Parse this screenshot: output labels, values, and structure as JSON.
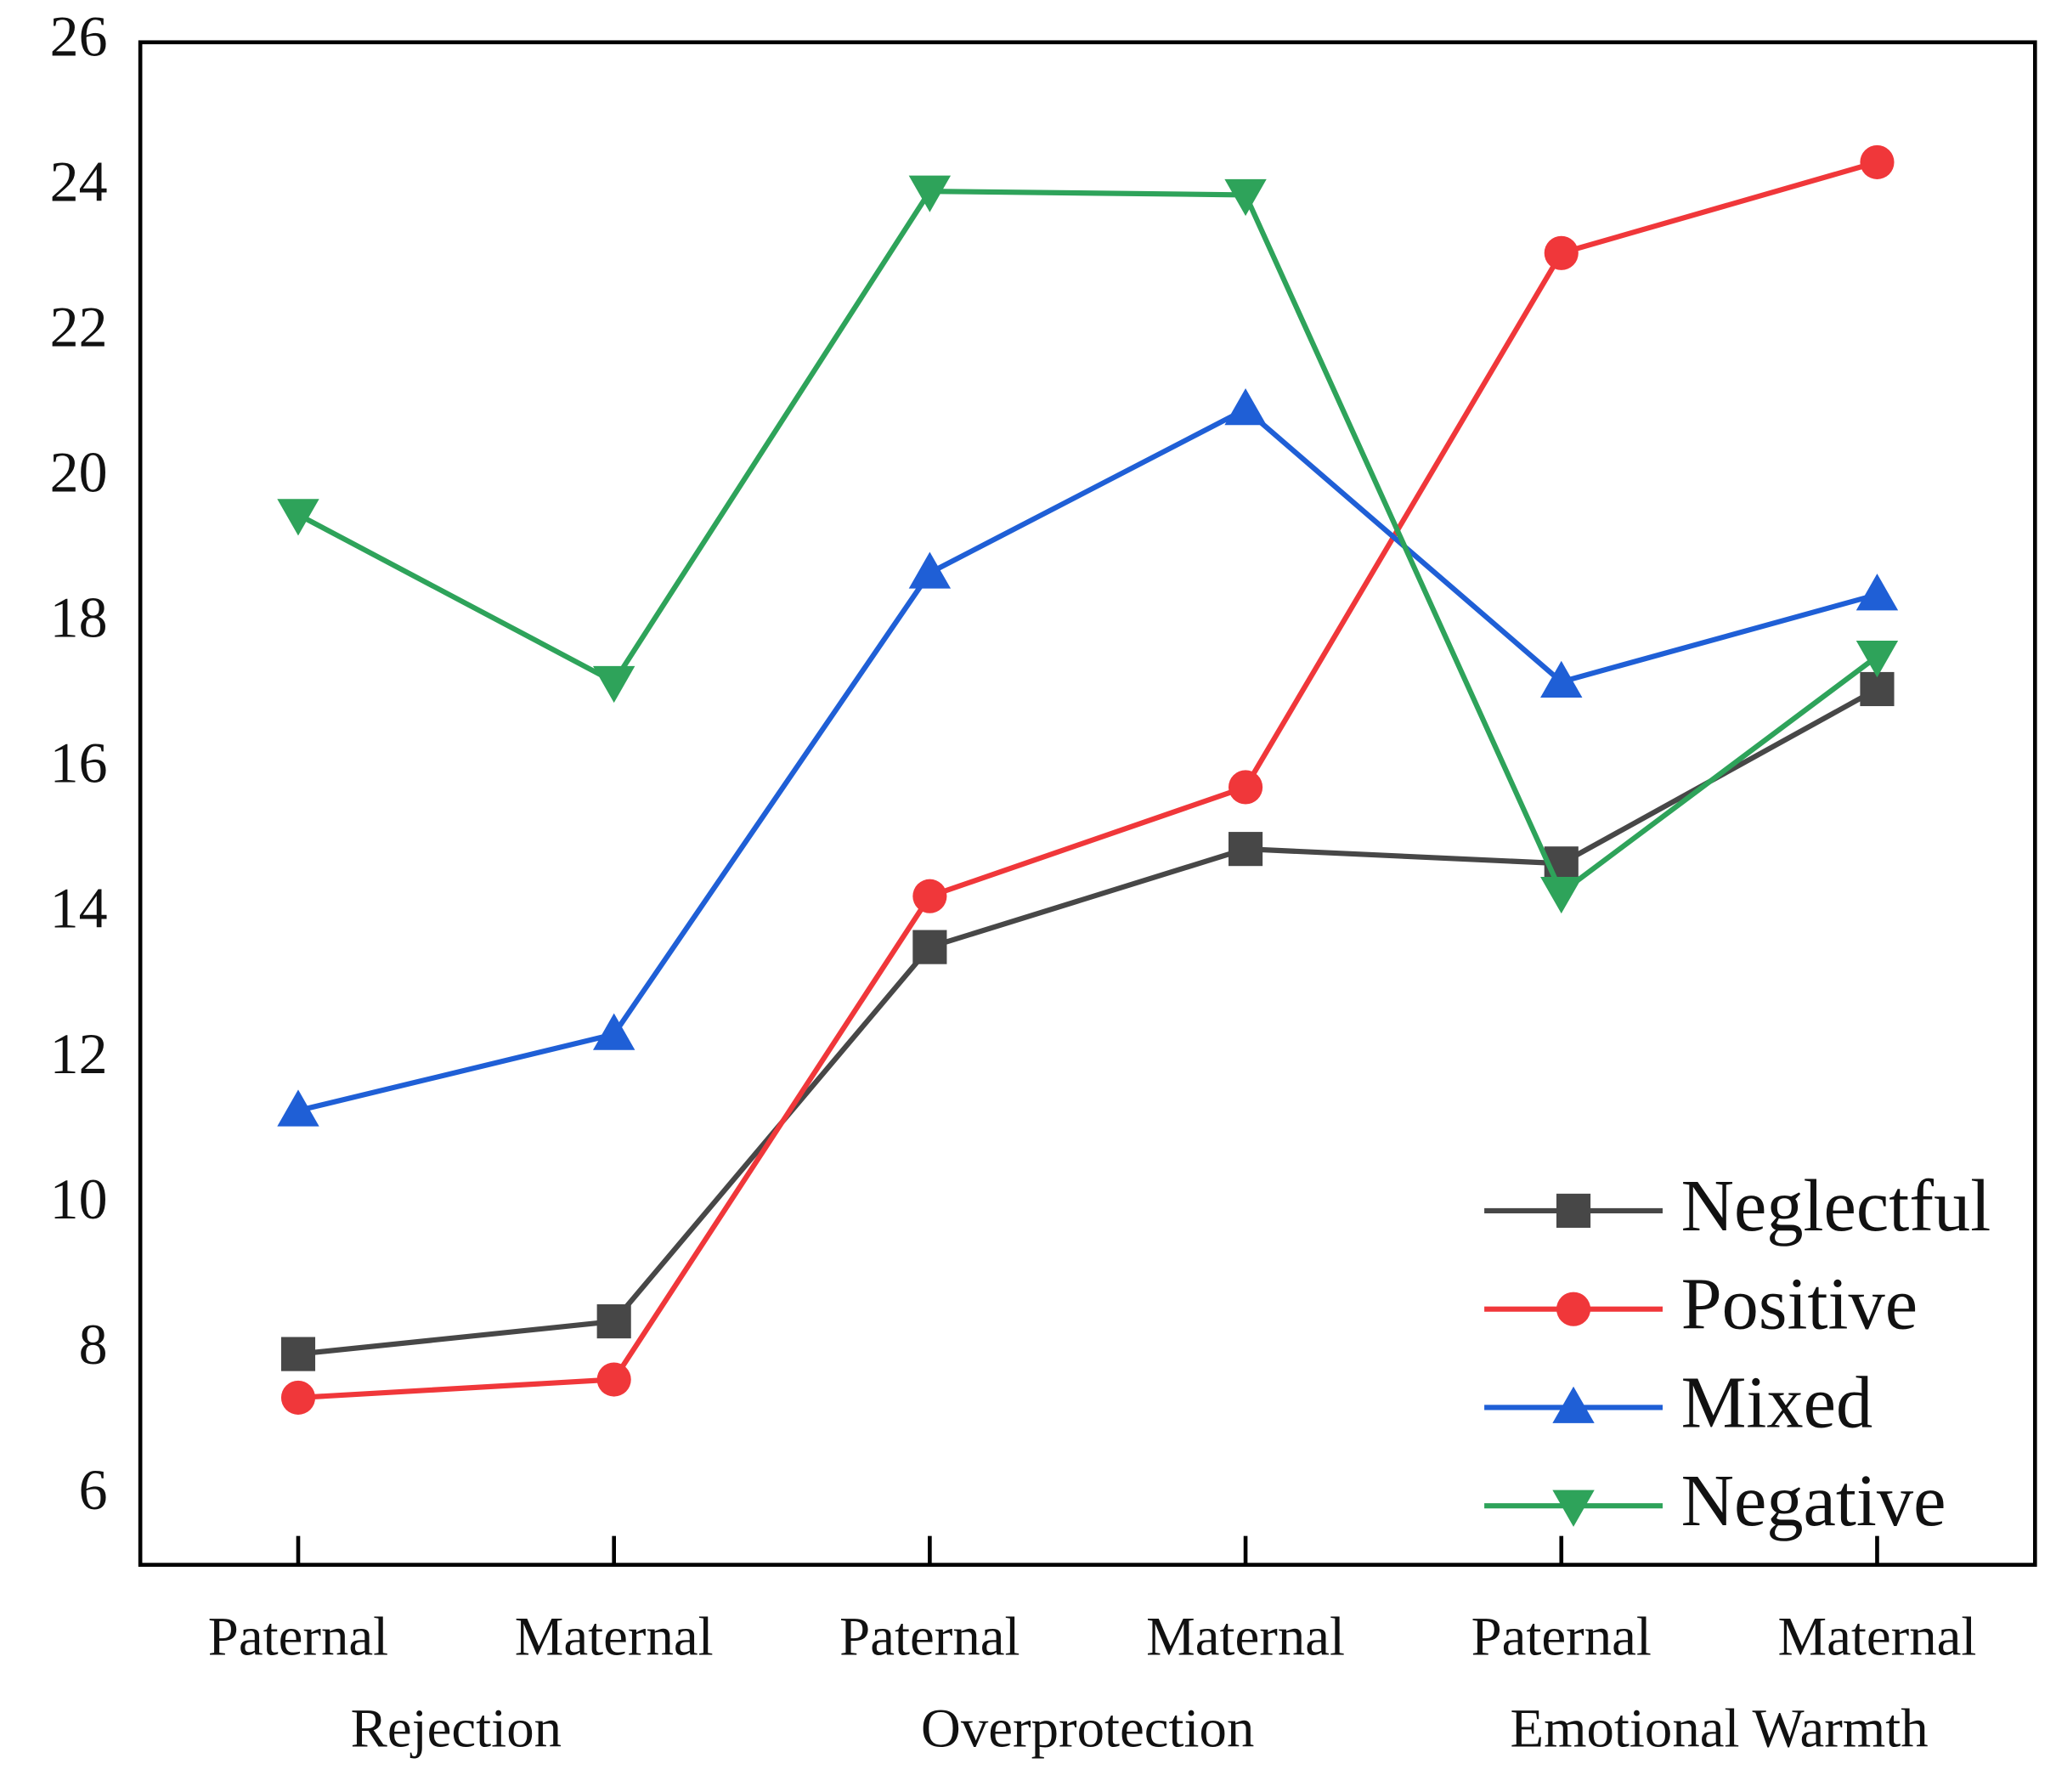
{
  "chart_data": {
    "type": "line",
    "categories": [
      "Paternal",
      "Maternal",
      "Paternal",
      "Maternal",
      "Paternal",
      "Maternal"
    ],
    "group_labels": [
      "Rejection",
      "Overprotection",
      "Emotional Warmth"
    ],
    "series": [
      {
        "name": "Neglectful",
        "color": "#474747",
        "marker": "square",
        "values": [
          7.95,
          8.4,
          13.55,
          14.9,
          14.7,
          17.1
        ]
      },
      {
        "name": "Positive",
        "color": "#f0373a",
        "marker": "circle",
        "values": [
          7.35,
          7.6,
          14.25,
          15.75,
          23.1,
          24.35
        ]
      },
      {
        "name": "Mixed",
        "color": "#1f5fd6",
        "marker": "triangle-up",
        "values": [
          11.3,
          12.35,
          18.7,
          20.95,
          17.2,
          18.4
        ]
      },
      {
        "name": "Negative",
        "color": "#2ea35a",
        "marker": "triangle-down",
        "values": [
          19.5,
          17.2,
          23.95,
          23.9,
          14.3,
          17.55
        ]
      }
    ],
    "ylim": [
      5.05,
      26
    ],
    "yticks": [
      6,
      8,
      10,
      12,
      14,
      16,
      18,
      20,
      22,
      24,
      26
    ],
    "grid": false,
    "legend": "lower right"
  }
}
